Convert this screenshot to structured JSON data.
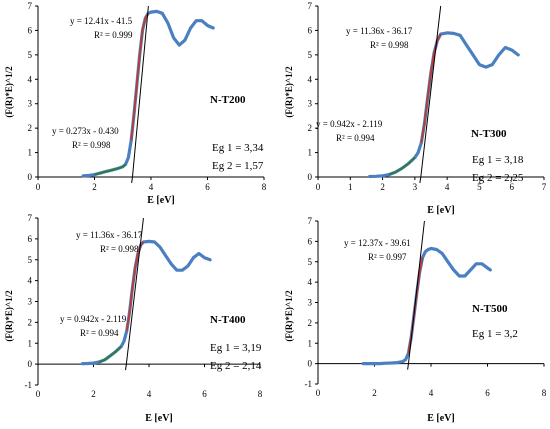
{
  "colors": {
    "data_series": "#4a7fc1",
    "fit_line": "#000000",
    "steep_highlight": "#c0392b",
    "low_highlight": "#2e7d32",
    "axis": "#000000"
  },
  "chart_data": [
    {
      "type": "line",
      "sample_name": "N-T200",
      "eg_lines": [
        "Eg 1 = 3,34",
        "Eg 2 = 1,57"
      ],
      "xlabel": "E [eV]",
      "ylabel": "(F(R)*E)^1/2",
      "xlim": [
        0,
        8
      ],
      "ylim": [
        0,
        7
      ],
      "xticks": [
        0,
        2,
        4,
        6,
        8
      ],
      "yticks": [
        0,
        1,
        2,
        3,
        4,
        5,
        6,
        7
      ],
      "grid": false,
      "series": [
        {
          "x": [
            1.6,
            1.8,
            2.0,
            2.2,
            2.4,
            2.6,
            2.8,
            3.0,
            3.1,
            3.2,
            3.3,
            3.4,
            3.5,
            3.6,
            3.7,
            3.8,
            3.9,
            4.0,
            4.2,
            4.4,
            4.6,
            4.8,
            5.0,
            5.2,
            5.4,
            5.6,
            5.8,
            6.0,
            6.2
          ],
          "y": [
            0.05,
            0.06,
            0.1,
            0.16,
            0.22,
            0.28,
            0.34,
            0.42,
            0.52,
            0.8,
            1.5,
            2.6,
            3.8,
            5.0,
            6.0,
            6.5,
            6.7,
            6.75,
            6.78,
            6.7,
            6.3,
            5.7,
            5.4,
            5.6,
            6.1,
            6.4,
            6.4,
            6.2,
            6.1
          ]
        }
      ],
      "fits": [
        {
          "label_eq": "y = 12.41x - 41.5",
          "label_r2": "R² = 0.999",
          "slope": 12.41,
          "intercept": -41.5,
          "x_range": [
            3.34,
            3.94
          ]
        },
        {
          "label_eq": "y = 0.273x - 0.430",
          "label_r2": "R² = 0.998",
          "slope": 0.273,
          "intercept": -0.43,
          "x_range": [
            1.9,
            3.1
          ]
        }
      ]
    },
    {
      "type": "line",
      "sample_name": "N-T300",
      "eg_lines": [
        "Eg 1 = 3,18",
        "Eg 2 = 2,25"
      ],
      "xlabel": "E [eV]",
      "ylabel": "(F(R)*E)^1/2",
      "xlim": [
        0,
        7
      ],
      "ylim": [
        0,
        7
      ],
      "xticks": [
        0,
        1,
        2,
        3,
        4,
        5,
        6,
        7
      ],
      "yticks": [
        0,
        1,
        2,
        3,
        4,
        5,
        6,
        7
      ],
      "grid": false,
      "series": [
        {
          "x": [
            1.6,
            1.8,
            2.0,
            2.2,
            2.4,
            2.6,
            2.8,
            3.0,
            3.1,
            3.2,
            3.3,
            3.4,
            3.5,
            3.6,
            3.7,
            3.8,
            4.0,
            4.2,
            4.4,
            4.6,
            4.8,
            5.0,
            5.2,
            5.4,
            5.6,
            5.8,
            6.0,
            6.2
          ],
          "y": [
            0.02,
            0.03,
            0.05,
            0.1,
            0.2,
            0.35,
            0.55,
            0.8,
            1.0,
            1.4,
            2.2,
            3.3,
            4.3,
            5.1,
            5.6,
            5.85,
            5.9,
            5.88,
            5.8,
            5.4,
            5.0,
            4.6,
            4.5,
            4.6,
            5.0,
            5.3,
            5.2,
            5.0
          ]
        }
      ],
      "fits": [
        {
          "label_eq": "y = 11.36x - 36.17",
          "label_r2": "R² = 0.998",
          "slope": 11.36,
          "intercept": -36.17,
          "x_range": [
            3.18,
            3.75
          ]
        },
        {
          "label_eq": "y = 0.942x - 2.119",
          "label_r2": "R² = 0.994",
          "slope": 0.942,
          "intercept": -2.119,
          "x_range": [
            2.25,
            3.05
          ]
        }
      ]
    },
    {
      "type": "line",
      "sample_name": "N-T400",
      "eg_lines": [
        "Eg 1 = 3,19",
        "Eg 2 = 2,14"
      ],
      "xlabel": "E [eV]",
      "ylabel": "(F(R)*E)^1/2",
      "xlim": [
        0,
        8
      ],
      "ylim": [
        -1,
        7
      ],
      "xticks": [
        0,
        2,
        4,
        6,
        8
      ],
      "yticks": [
        -1,
        0,
        1,
        2,
        3,
        4,
        5,
        6,
        7
      ],
      "grid": false,
      "series": [
        {
          "x": [
            1.6,
            1.8,
            2.0,
            2.2,
            2.4,
            2.6,
            2.8,
            3.0,
            3.1,
            3.2,
            3.3,
            3.4,
            3.5,
            3.6,
            3.7,
            3.8,
            4.0,
            4.2,
            4.4,
            4.6,
            4.8,
            5.0,
            5.2,
            5.4,
            5.6,
            5.8,
            6.0,
            6.2
          ],
          "y": [
            0.02,
            0.03,
            0.05,
            0.1,
            0.2,
            0.4,
            0.6,
            0.85,
            1.1,
            1.6,
            2.5,
            3.6,
            4.6,
            5.3,
            5.7,
            5.85,
            5.88,
            5.85,
            5.6,
            5.2,
            4.8,
            4.5,
            4.5,
            4.7,
            5.1,
            5.3,
            5.1,
            5.0
          ]
        }
      ],
      "fits": [
        {
          "label_eq": "y = 11.36x - 36.17",
          "label_r2": "R² = 0.998",
          "slope": 11.36,
          "intercept": -36.17,
          "x_range": [
            3.19,
            3.75
          ]
        },
        {
          "label_eq": "y = 0.942x - 2.119",
          "label_r2": "R² = 0.994",
          "slope": 0.942,
          "intercept": -2.119,
          "x_range": [
            2.14,
            3.05
          ]
        }
      ]
    },
    {
      "type": "line",
      "sample_name": "N-T500",
      "eg_lines": [
        "Eg 1 = 3,2"
      ],
      "xlabel": "E [eV]",
      "ylabel": "(F(R)*E)^1/2",
      "xlim": [
        0,
        8
      ],
      "ylim": [
        -1,
        7
      ],
      "xticks": [
        0,
        2,
        4,
        6,
        8
      ],
      "yticks": [
        -1,
        0,
        1,
        2,
        3,
        4,
        5,
        6,
        7
      ],
      "grid": false,
      "series": [
        {
          "x": [
            1.6,
            1.8,
            2.0,
            2.2,
            2.4,
            2.6,
            2.8,
            3.0,
            3.1,
            3.2,
            3.3,
            3.4,
            3.5,
            3.6,
            3.7,
            3.8,
            3.9,
            4.0,
            4.2,
            4.4,
            4.6,
            4.8,
            5.0,
            5.2,
            5.4,
            5.6,
            5.8,
            6.0,
            6.1
          ],
          "y": [
            0.0,
            0.0,
            0.0,
            0.0,
            0.02,
            0.03,
            0.05,
            0.1,
            0.2,
            0.5,
            1.3,
            2.4,
            3.5,
            4.5,
            5.2,
            5.5,
            5.6,
            5.65,
            5.6,
            5.4,
            5.0,
            4.6,
            4.3,
            4.3,
            4.6,
            4.9,
            4.9,
            4.7,
            4.6
          ]
        }
      ],
      "fits": [
        {
          "label_eq": "y = 12.37x - 39.61",
          "label_r2": "R² = 0.997",
          "slope": 12.37,
          "intercept": -39.61,
          "x_range": [
            3.2,
            3.7
          ]
        }
      ]
    }
  ]
}
